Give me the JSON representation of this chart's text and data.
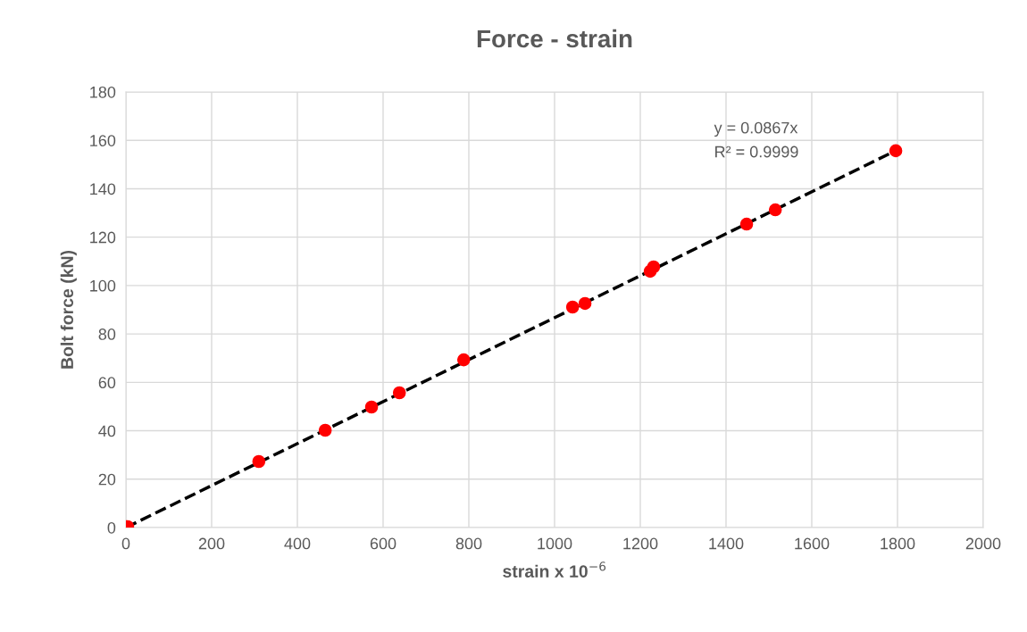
{
  "chart_data": {
    "type": "scatter",
    "title": "Force - strain",
    "xlabel": "strain x 10$^{−6}$",
    "ylabel": "Bolt force (kN)",
    "xlim": [
      0,
      2000
    ],
    "xticks": [
      0,
      200,
      400,
      600,
      800,
      1000,
      1200,
      1400,
      1600,
      1800,
      2000
    ],
    "ylim": [
      0,
      180
    ],
    "yticks": [
      0,
      20,
      40,
      60,
      80,
      100,
      120,
      140,
      160,
      180
    ],
    "grid": true,
    "legend": false,
    "series": [
      {
        "type": "line",
        "color": "#000000",
        "line_style": "dashed",
        "marker": "none",
        "x": [
          0,
          1800
        ],
        "values": [
          0,
          156.1
        ]
      },
      {
        "color": "#ff0000",
        "marker": "circle",
        "x": [
          4,
          310,
          465,
          573,
          638,
          788,
          1042,
          1071,
          1223,
          1231,
          1448,
          1515,
          1796
        ],
        "values": [
          0.4,
          27.3,
          40.2,
          49.8,
          55.7,
          69.3,
          91.1,
          92.6,
          105.9,
          107.7,
          125.4,
          131.3,
          155.7
        ]
      }
    ],
    "annotations": [
      "y = 0.0867x",
      "R² = 0.9999"
    ]
  }
}
